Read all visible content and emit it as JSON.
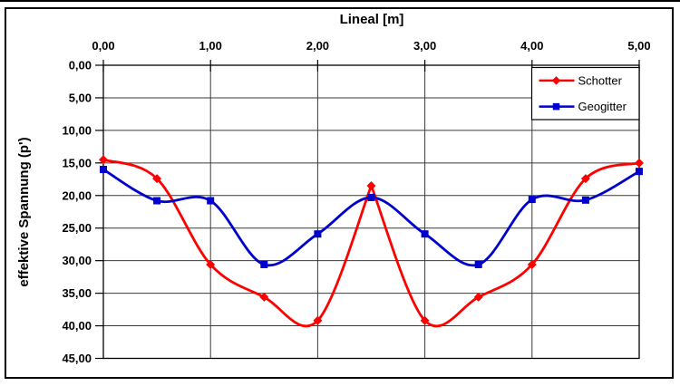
{
  "chart_data": {
    "type": "line",
    "title": "Lineal [m]",
    "xlabel": "Lineal [m]",
    "ylabel": "effektive Spannung (p')",
    "grid": true,
    "legend_position": "top-right",
    "x_axis": {
      "position": "top",
      "min": 0,
      "max": 5,
      "tick_values": [
        0,
        1,
        2,
        3,
        4,
        5
      ],
      "tick_labels": [
        "0,00",
        "1,00",
        "2,00",
        "3,00",
        "4,00",
        "5,00"
      ]
    },
    "y_axis": {
      "position": "left",
      "inverted": true,
      "min": 0,
      "max": 45,
      "tick_values": [
        0,
        5,
        10,
        15,
        20,
        25,
        30,
        35,
        40,
        45
      ],
      "tick_labels": [
        "0,00",
        "5,00",
        "10,00",
        "15,00",
        "20,00",
        "25,00",
        "30,00",
        "35,00",
        "40,00",
        "45,00"
      ]
    },
    "x": [
      0,
      0.5,
      1.0,
      1.5,
      2.0,
      2.5,
      3.0,
      3.5,
      4.0,
      4.5,
      5.0
    ],
    "series": [
      {
        "name": "Schotter",
        "color": "#ff0000",
        "marker": "diamond",
        "smooth": true,
        "sharp_x": [
          2.5
        ],
        "values": [
          14.5,
          17.4,
          30.6,
          35.6,
          39.2,
          18.5,
          39.2,
          35.6,
          30.6,
          17.4,
          15.0
        ]
      },
      {
        "name": "Geogitter",
        "color": "#0000cc",
        "marker": "square",
        "smooth": true,
        "sharp_x": [],
        "values": [
          16.0,
          20.8,
          20.8,
          30.6,
          25.9,
          20.3,
          25.9,
          30.6,
          20.6,
          20.7,
          16.3
        ]
      }
    ],
    "colors": {
      "grid": "#3a3a3a",
      "axis": "#000000",
      "text": "#000000",
      "background": "#ffffff"
    }
  }
}
